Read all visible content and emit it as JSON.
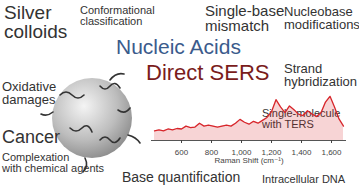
{
  "labels": [
    [
      "Silver",
      "colloids"
    ],
    [
      "Conformational",
      "classification"
    ],
    [
      "Single-base",
      "mismatch"
    ],
    [
      "Nucleobase",
      "modifications"
    ],
    [
      "Nucleic Acids"
    ],
    [
      "Direct SERS"
    ],
    [
      "Strand",
      "hybridization"
    ],
    [
      "Oxidative",
      "damages"
    ],
    [
      "Cancer"
    ],
    [
      "Complexation",
      "with chemical agents"
    ],
    [
      "Single-molecule",
      "with TERS"
    ],
    [
      "Intracellular DNA"
    ],
    [
      "Base quantification"
    ]
  ],
  "chart_data": {
    "type": "line",
    "xlabel": "Raman Shift (cm⁻¹)",
    "color": "#d7262b",
    "x": [
      420,
      450,
      480,
      510,
      540,
      570,
      600,
      630,
      660,
      690,
      720,
      750,
      780,
      810,
      840,
      870,
      900,
      930,
      960,
      990,
      1020,
      1050,
      1080,
      1110,
      1140,
      1170,
      1200,
      1230,
      1260,
      1290,
      1320,
      1350,
      1380,
      1410,
      1440,
      1470,
      1500,
      1530,
      1560,
      1590,
      1620,
      1650,
      1680
    ],
    "values": [
      20,
      22,
      20,
      24,
      22,
      25,
      24,
      30,
      27,
      28,
      36,
      30,
      32,
      30,
      28,
      30,
      32,
      30,
      36,
      44,
      38,
      34,
      40,
      36,
      42,
      48,
      60,
      85,
      70,
      58,
      72,
      64,
      55,
      52,
      62,
      55,
      50,
      58,
      80,
      92,
      70,
      45,
      30
    ],
    "xlim": [
      400,
      1700
    ],
    "xticks": [
      600,
      800,
      1000,
      1200,
      1400,
      1600
    ],
    "ylim": [
      0,
      100
    ],
    "tick_labels": "x"
  }
}
